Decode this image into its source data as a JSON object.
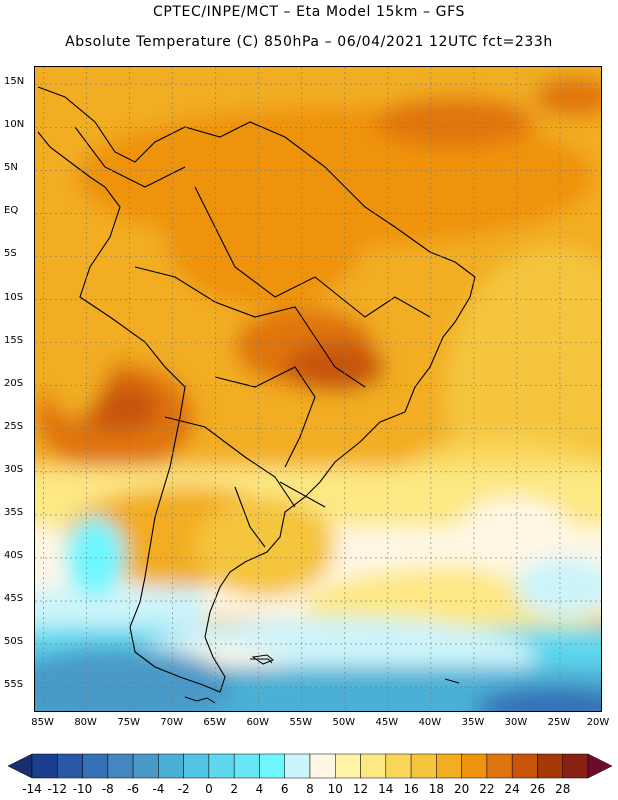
{
  "header": {
    "line1": "CPTEC/INPE/MCT –  Eta Model 15km – GFS",
    "line2": "Absolute Temperature (C) 850hPa – 06/04/2021 12UTC fct=233h"
  },
  "map": {
    "lat_labels": [
      "15N",
      "10N",
      "5N",
      "EQ",
      "5S",
      "10S",
      "15S",
      "20S",
      "25S",
      "30S",
      "35S",
      "40S",
      "45S",
      "50S",
      "55S"
    ],
    "lon_labels": [
      "85W",
      "80W",
      "75W",
      "70W",
      "65W",
      "60W",
      "55W",
      "50W",
      "45W",
      "40W",
      "35W",
      "30W",
      "25W",
      "20W"
    ],
    "lon_range": [
      -86,
      -20
    ],
    "lat_range": [
      -58,
      17
    ],
    "grid_step_deg": 5
  },
  "colorbar": {
    "labels": [
      "-14",
      "-12",
      "-10",
      "-8",
      "-6",
      "-4",
      "-2",
      "0",
      "2",
      "4",
      "6",
      "8",
      "10",
      "12",
      "14",
      "16",
      "18",
      "20",
      "22",
      "24",
      "26",
      "28"
    ],
    "colors": [
      "#1a3f8f",
      "#2a58a8",
      "#3670b6",
      "#4486c0",
      "#4a9ac8",
      "#4cb0d6",
      "#52c4e4",
      "#5ed8ee",
      "#68e6f6",
      "#70f6ff",
      "#cdf4fb",
      "#fff7e4",
      "#fff4a6",
      "#fde884",
      "#f9d65a",
      "#f5c53e",
      "#f2ad20",
      "#ef930e",
      "#e07410",
      "#c8540a",
      "#a63706",
      "#872212"
    ],
    "under_color": "#1a2d70",
    "over_color": "#6e0b2b"
  }
}
